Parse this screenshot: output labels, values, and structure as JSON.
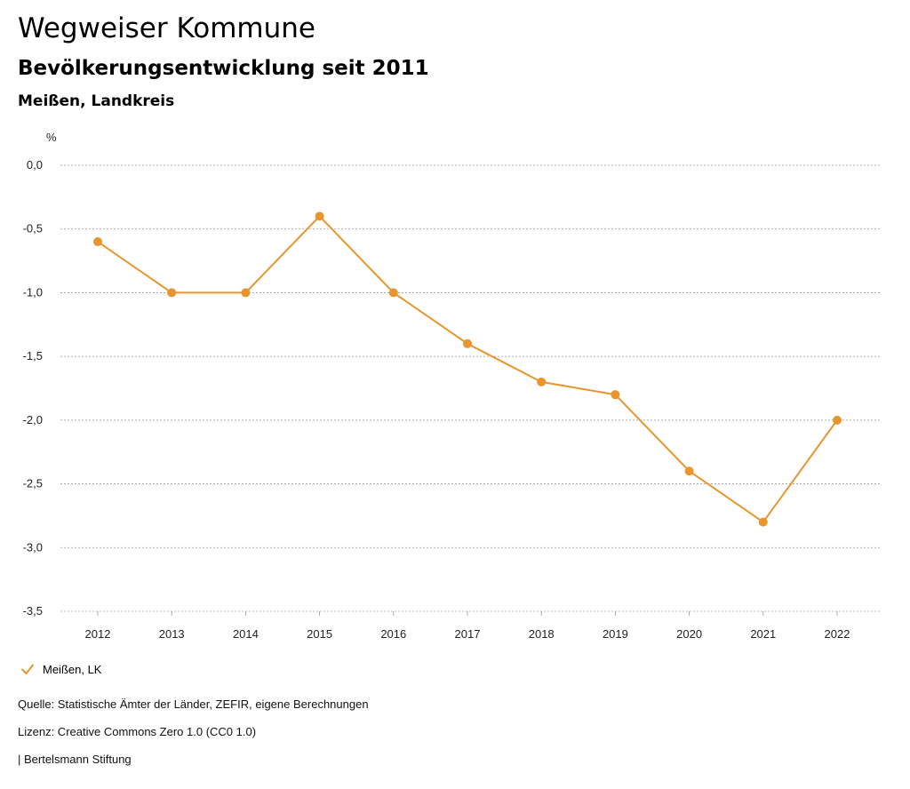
{
  "header": {
    "title": "Wegweiser Kommune",
    "subtitle": "Bevölkerungsentwicklung seit 2011",
    "region": "Meißen, Landkreis"
  },
  "chart_data": {
    "type": "line",
    "ylabel": "%",
    "xlabel": "",
    "categories": [
      "2012",
      "2013",
      "2014",
      "2015",
      "2016",
      "2017",
      "2018",
      "2019",
      "2020",
      "2021",
      "2022"
    ],
    "series": [
      {
        "name": "Meißen, LK",
        "color": "#E8952E",
        "values": [
          -0.6,
          -1.0,
          -1.0,
          -0.4,
          -1.0,
          -1.4,
          -1.7,
          -1.8,
          -2.4,
          -2.8,
          -2.0
        ]
      }
    ],
    "yticks": [
      0.0,
      -0.5,
      -1.0,
      -1.5,
      -2.0,
      -2.5,
      -3.0,
      -3.5
    ],
    "ytick_labels": [
      "0,0",
      "-0,5",
      "-1,0",
      "-1,5",
      "-2,0",
      "-2,5",
      "-3,0",
      "-3,5"
    ],
    "ylim": [
      -3.5,
      0.0
    ],
    "grid": true,
    "legend": "bottom-left"
  },
  "legend": {
    "label": "Meißen, LK",
    "icon": "check-icon"
  },
  "footer": {
    "source": "Quelle: Statistische Ämter der Länder, ZEFIR, eigene Berechnungen",
    "license": "Lizenz: Creative Commons Zero 1.0 (CC0 1.0)",
    "publisher": "| Bertelsmann Stiftung"
  }
}
